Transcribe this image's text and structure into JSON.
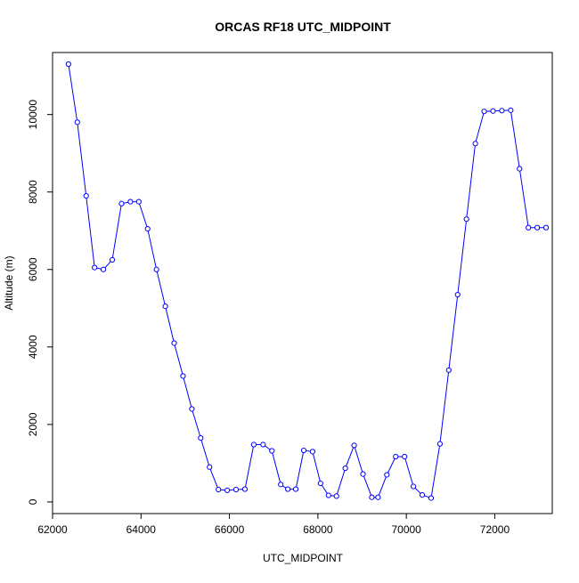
{
  "chart_data": {
    "type": "line",
    "title": "ORCAS RF18 UTC_MIDPOINT",
    "xlabel": "UTC_MIDPOINT",
    "ylabel": "Altitude (m)",
    "xlim": [
      62000,
      73300
    ],
    "ylim": [
      -300,
      11600
    ],
    "x_ticks": [
      62000,
      64000,
      66000,
      68000,
      70000,
      72000
    ],
    "x_tick_labels": [
      "62000",
      "64000",
      "66000",
      "68000",
      "70000",
      "72000"
    ],
    "y_ticks": [
      0,
      2000,
      4000,
      6000,
      8000,
      10000
    ],
    "y_tick_labels": [
      "0",
      "2000",
      "4000",
      "6000",
      "8000",
      "10000"
    ],
    "grid": false,
    "colors": {
      "series": "#0000ff"
    },
    "series": [
      {
        "marker": "open-circle",
        "x": [
          62360,
          62560,
          62760,
          62950,
          63150,
          63350,
          63560,
          63760,
          63950,
          64150,
          64350,
          64550,
          64750,
          64950,
          65150,
          65350,
          65550,
          65750,
          65950,
          66150,
          66350,
          66550,
          66760,
          66960,
          67160,
          67320,
          67500,
          67680,
          67880,
          68060,
          68240,
          68420,
          68620,
          68820,
          69020,
          69220,
          69360,
          69560,
          69760,
          69960,
          70160,
          70360,
          70560,
          70760,
          70960,
          71160,
          71360,
          71560,
          71760,
          71960,
          72160,
          72360,
          72560,
          72760,
          72960,
          73160
        ],
        "y": [
          11300,
          9800,
          7900,
          6050,
          6000,
          6250,
          7700,
          7750,
          7750,
          7050,
          6000,
          5050,
          4100,
          3250,
          2400,
          1650,
          900,
          320,
          300,
          320,
          330,
          1480,
          1480,
          1320,
          450,
          330,
          330,
          1330,
          1300,
          480,
          170,
          150,
          870,
          1460,
          720,
          120,
          120,
          700,
          1170,
          1170,
          400,
          180,
          100,
          1500,
          3400,
          5350,
          7300,
          9250,
          10080,
          10090,
          10100,
          10110,
          8600,
          7080,
          7080,
          7080
        ]
      }
    ]
  }
}
